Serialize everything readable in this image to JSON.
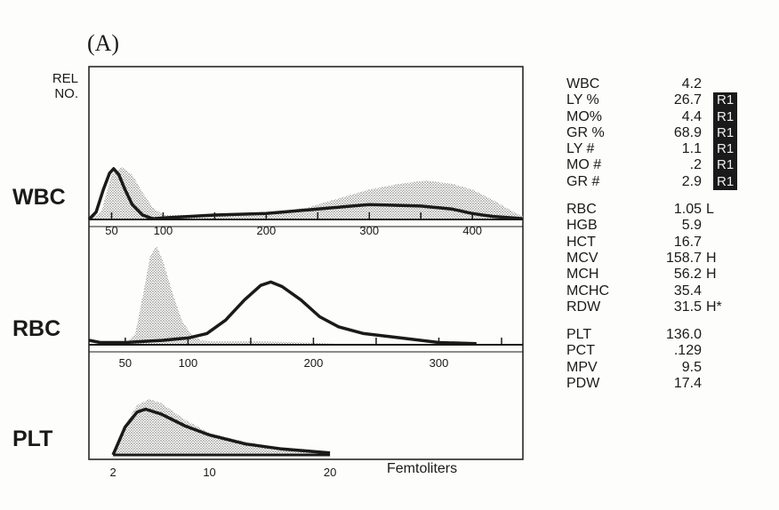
{
  "figure_label": "(A)",
  "y_axis_label_line1": "REL",
  "y_axis_label_line2": "NO.",
  "x_axis_unit": "Femtoliters",
  "chart_data": [
    {
      "type": "area",
      "name": "WBC",
      "xlim": [
        28,
        449
      ],
      "ylim": [
        0,
        1
      ],
      "ticks": [
        50,
        100,
        200,
        300,
        400
      ],
      "minor_ticks": [
        50,
        100,
        150,
        200,
        250,
        300,
        350,
        400
      ],
      "series": [
        {
          "name": "reference (shaded)",
          "style": "stipple",
          "x": [
            28,
            40,
            50,
            60,
            70,
            80,
            90,
            100,
            150,
            200,
            240,
            260,
            300,
            330,
            355,
            380,
            400,
            420,
            440,
            449
          ],
          "y": [
            0,
            0.05,
            0.3,
            0.35,
            0.3,
            0.18,
            0.08,
            0.03,
            0.03,
            0.04,
            0.08,
            0.12,
            0.2,
            0.24,
            0.26,
            0.24,
            0.2,
            0.13,
            0.05,
            0.02
          ]
        },
        {
          "name": "patient (line)",
          "style": "line",
          "x": [
            28,
            35,
            42,
            48,
            52,
            57,
            63,
            70,
            80,
            90,
            100,
            150,
            200,
            250,
            300,
            350,
            380,
            400,
            420,
            440,
            449
          ],
          "y": [
            0,
            0.05,
            0.2,
            0.31,
            0.34,
            0.3,
            0.2,
            0.1,
            0.03,
            0.005,
            0.01,
            0.03,
            0.04,
            0.07,
            0.1,
            0.09,
            0.07,
            0.04,
            0.02,
            0.01,
            0.005
          ]
        }
      ]
    },
    {
      "type": "area",
      "name": "RBC",
      "xlim": [
        21,
        367
      ],
      "ylim": [
        0,
        1
      ],
      "ticks": [
        50,
        100,
        200,
        300
      ],
      "minor_ticks": [
        50,
        100,
        150,
        200,
        250,
        300,
        350
      ],
      "series": [
        {
          "name": "reference (shaded)",
          "style": "stipple",
          "x": [
            21,
            50,
            58,
            65,
            70,
            75,
            80,
            88,
            95,
            102,
            110,
            120,
            150,
            200,
            230
          ],
          "y": [
            0,
            0.01,
            0.1,
            0.5,
            0.8,
            0.88,
            0.75,
            0.45,
            0.22,
            0.1,
            0.04,
            0.03,
            0.03,
            0.02,
            0
          ]
        },
        {
          "name": "patient (line)",
          "style": "line",
          "x": [
            21,
            30,
            50,
            80,
            100,
            115,
            130,
            145,
            158,
            166,
            175,
            190,
            205,
            220,
            240,
            270,
            300,
            330
          ],
          "y": [
            0.04,
            0.02,
            0.02,
            0.04,
            0.06,
            0.1,
            0.22,
            0.4,
            0.53,
            0.56,
            0.52,
            0.4,
            0.25,
            0.16,
            0.1,
            0.06,
            0.02,
            0.01
          ]
        }
      ]
    },
    {
      "type": "area",
      "name": "PLT",
      "xlim": [
        0,
        36
      ],
      "ylim": [
        0,
        1
      ],
      "ticks": [
        2,
        10,
        20
      ],
      "series": [
        {
          "name": "reference (shaded)",
          "style": "stipple",
          "x": [
            2,
            3,
            4,
            5,
            6,
            8,
            10,
            13,
            16,
            20
          ],
          "y": [
            0,
            0.3,
            0.5,
            0.56,
            0.52,
            0.35,
            0.22,
            0.13,
            0.07,
            0.02
          ]
        },
        {
          "name": "patient (line)",
          "style": "line",
          "x": [
            2,
            3,
            4,
            4.7,
            6,
            8,
            10,
            13,
            16,
            20
          ],
          "y": [
            0,
            0.28,
            0.43,
            0.46,
            0.41,
            0.29,
            0.2,
            0.11,
            0.06,
            0.02
          ]
        }
      ]
    }
  ],
  "results": {
    "wbc_group": [
      {
        "name": "WBC",
        "value": "4.2",
        "flag": "",
        "region": ""
      },
      {
        "name": "LY %",
        "value": "26.7",
        "flag": "",
        "region": "R1"
      },
      {
        "name": "MO%",
        "value": "4.4",
        "flag": "",
        "region": "R1"
      },
      {
        "name": "GR %",
        "value": "68.9",
        "flag": "",
        "region": "R1"
      },
      {
        "name": "LY #",
        "value": "1.1",
        "flag": "",
        "region": "R1"
      },
      {
        "name": "MO #",
        "value": ".2",
        "flag": "",
        "region": "R1"
      },
      {
        "name": "GR #",
        "value": "2.9",
        "flag": "",
        "region": "R1"
      }
    ],
    "rbc_group": [
      {
        "name": "RBC",
        "value": "1.05",
        "flag": "L"
      },
      {
        "name": "HGB",
        "value": "5.9",
        "flag": ""
      },
      {
        "name": "HCT",
        "value": "16.7",
        "flag": ""
      },
      {
        "name": "MCV",
        "value": "158.7",
        "flag": "H"
      },
      {
        "name": "MCH",
        "value": "56.2",
        "flag": "H"
      },
      {
        "name": "MCHC",
        "value": "35.4",
        "flag": ""
      },
      {
        "name": "RDW",
        "value": "31.5",
        "flag": "H*"
      }
    ],
    "plt_group": [
      {
        "name": "PLT",
        "value": "136.0",
        "flag": ""
      },
      {
        "name": "PCT",
        "value": ".129",
        "flag": ""
      },
      {
        "name": "MPV",
        "value": "9.5",
        "flag": ""
      },
      {
        "name": "PDW",
        "value": "17.4",
        "flag": ""
      }
    ]
  },
  "colors": {
    "ink": "#1a1a1a",
    "stipple": "#9a9a9a",
    "paper": "#fdfdfb"
  }
}
